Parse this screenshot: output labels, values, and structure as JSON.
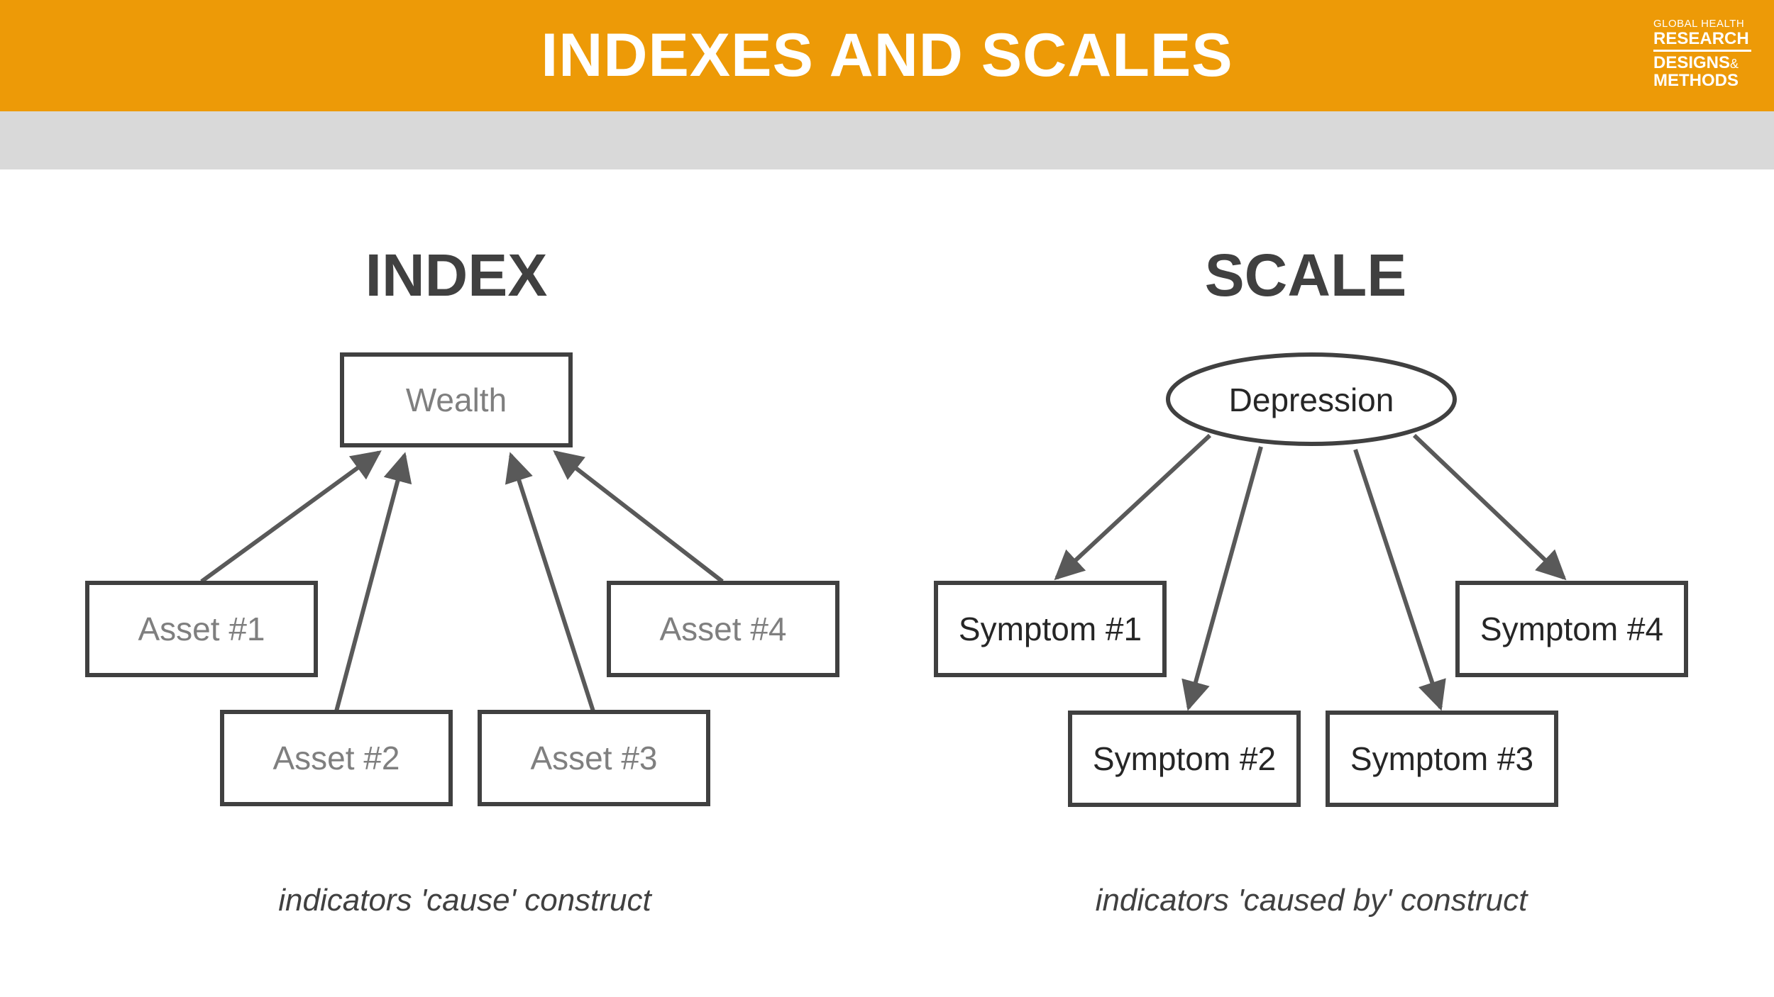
{
  "header": {
    "title": "INDEXES AND SCALES",
    "logo": {
      "line1": "GLOBAL HEALTH",
      "line2": "RESEARCH",
      "line3": "DESIGNS",
      "amp": "&",
      "line4": "METHODS"
    },
    "colors": {
      "title_bar": "#ED9A07",
      "sub_bar": "#D9D9D9"
    }
  },
  "index_panel": {
    "heading": "INDEX",
    "construct": "Wealth",
    "indicators": [
      "Asset #1",
      "Asset #2",
      "Asset #3",
      "Asset #4"
    ],
    "arrow_direction": "indicators-to-construct",
    "caption": "indicators 'cause' construct"
  },
  "scale_panel": {
    "heading": "SCALE",
    "construct": "Depression",
    "indicators": [
      "Symptom #1",
      "Symptom #2",
      "Symptom #3",
      "Symptom #4"
    ],
    "arrow_direction": "construct-to-indicators",
    "caption": "indicators 'caused by' construct"
  },
  "diagram_colors": {
    "stroke": "#404040",
    "arrow": "#595959"
  }
}
